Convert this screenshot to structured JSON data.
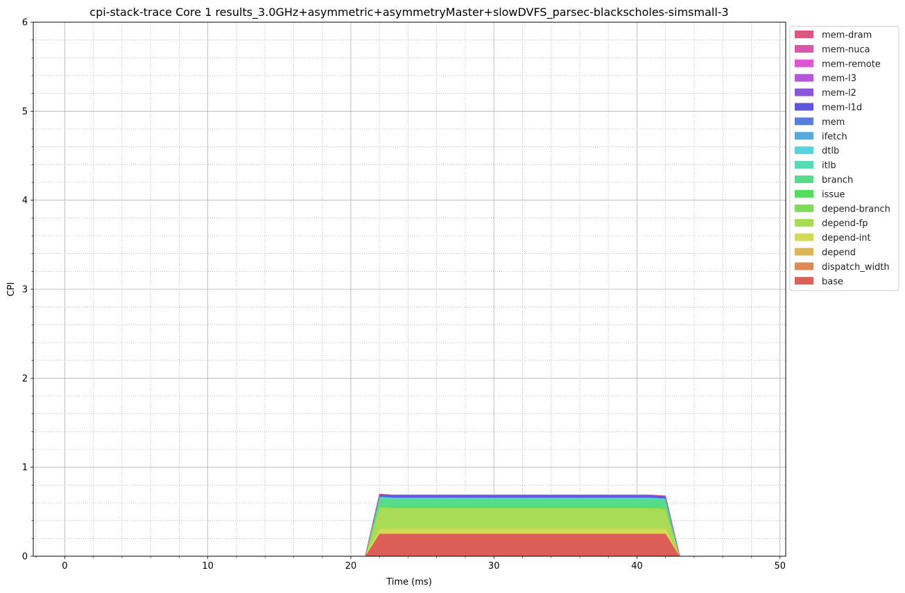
{
  "chart_data": {
    "type": "area",
    "stacked": true,
    "title": "cpi-stack-trace Core 1 results_3.0GHz+asymmetric+asymmetryMaster+slowDVFS_parsec-blackscholes-simsmall-3",
    "xlabel": "Time (ms)",
    "ylabel": "CPI",
    "xlim": [
      -2.2,
      50.4
    ],
    "ylim": [
      0,
      6
    ],
    "x_ticks": [
      0,
      10,
      20,
      30,
      40,
      50
    ],
    "y_ticks": [
      0,
      1,
      2,
      3,
      4,
      5,
      6
    ],
    "grid": "major solid, minor dotted",
    "legend_placement": "outside upper right",
    "legend_order": [
      "mem-dram",
      "mem-nuca",
      "mem-remote",
      "mem-l3",
      "mem-l2",
      "mem-l1d",
      "mem",
      "ifetch",
      "dtlb",
      "itlb",
      "branch",
      "issue",
      "depend-branch",
      "depend-fp",
      "depend-int",
      "depend",
      "dispatch_width",
      "base"
    ],
    "x": [
      21,
      22,
      23,
      24,
      25,
      26,
      27,
      28,
      29,
      30,
      31,
      32,
      33,
      34,
      35,
      36,
      37,
      38,
      39,
      40,
      41,
      42,
      43
    ],
    "series": [
      {
        "name": "base",
        "color": "#db5f57",
        "values": [
          0,
          0.25,
          0.25,
          0.25,
          0.25,
          0.25,
          0.25,
          0.25,
          0.25,
          0.25,
          0.25,
          0.25,
          0.25,
          0.25,
          0.25,
          0.25,
          0.25,
          0.25,
          0.25,
          0.25,
          0.25,
          0.25,
          0
        ]
      },
      {
        "name": "dispatch_width",
        "color": "#db8a57",
        "values": [
          0,
          0.005,
          0.005,
          0.005,
          0.005,
          0.005,
          0.005,
          0.005,
          0.005,
          0.005,
          0.005,
          0.005,
          0.005,
          0.005,
          0.005,
          0.005,
          0.005,
          0.005,
          0.005,
          0.005,
          0.005,
          0.005,
          0
        ]
      },
      {
        "name": "depend",
        "color": "#dbb557",
        "values": [
          0,
          0.005,
          0.005,
          0.005,
          0.005,
          0.005,
          0.005,
          0.005,
          0.005,
          0.005,
          0.005,
          0.005,
          0.005,
          0.005,
          0.005,
          0.005,
          0.005,
          0.005,
          0.005,
          0.005,
          0.005,
          0.005,
          0
        ]
      },
      {
        "name": "depend-int",
        "color": "#d4db57",
        "values": [
          0,
          0.05,
          0.05,
          0.05,
          0.05,
          0.05,
          0.05,
          0.05,
          0.05,
          0.05,
          0.05,
          0.05,
          0.05,
          0.05,
          0.05,
          0.05,
          0.05,
          0.05,
          0.05,
          0.05,
          0.05,
          0.05,
          0
        ]
      },
      {
        "name": "depend-fp",
        "color": "#a9db57",
        "values": [
          0,
          0.24,
          0.23,
          0.23,
          0.23,
          0.23,
          0.23,
          0.23,
          0.23,
          0.23,
          0.23,
          0.23,
          0.23,
          0.23,
          0.23,
          0.23,
          0.23,
          0.23,
          0.23,
          0.23,
          0.23,
          0.22,
          0
        ]
      },
      {
        "name": "depend-branch",
        "color": "#7edb57",
        "values": [
          0,
          0.01,
          0.01,
          0.01,
          0.01,
          0.01,
          0.01,
          0.01,
          0.01,
          0.01,
          0.01,
          0.01,
          0.01,
          0.01,
          0.01,
          0.01,
          0.01,
          0.01,
          0.01,
          0.01,
          0.01,
          0.01,
          0
        ]
      },
      {
        "name": "issue",
        "color": "#57db5f",
        "values": [
          0,
          0.01,
          0.01,
          0.01,
          0.01,
          0.01,
          0.01,
          0.01,
          0.01,
          0.01,
          0.01,
          0.01,
          0.01,
          0.01,
          0.01,
          0.01,
          0.01,
          0.01,
          0.01,
          0.01,
          0.01,
          0.01,
          0
        ]
      },
      {
        "name": "branch",
        "color": "#57db8a",
        "values": [
          0,
          0.08,
          0.08,
          0.08,
          0.08,
          0.08,
          0.08,
          0.08,
          0.08,
          0.08,
          0.08,
          0.08,
          0.08,
          0.08,
          0.08,
          0.08,
          0.08,
          0.08,
          0.08,
          0.08,
          0.08,
          0.08,
          0
        ]
      },
      {
        "name": "itlb",
        "color": "#57dbb5",
        "values": [
          0,
          0.01,
          0.01,
          0.01,
          0.01,
          0.01,
          0.01,
          0.01,
          0.01,
          0.01,
          0.01,
          0.01,
          0.01,
          0.01,
          0.01,
          0.01,
          0.01,
          0.01,
          0.01,
          0.01,
          0.01,
          0.01,
          0
        ]
      },
      {
        "name": "dtlb",
        "color": "#57d4db",
        "values": [
          0,
          0.005,
          0.005,
          0.005,
          0.005,
          0.005,
          0.005,
          0.005,
          0.005,
          0.005,
          0.005,
          0.005,
          0.005,
          0.005,
          0.005,
          0.005,
          0.005,
          0.005,
          0.005,
          0.005,
          0.005,
          0.005,
          0
        ]
      },
      {
        "name": "ifetch",
        "color": "#57a9db",
        "values": [
          0,
          0.005,
          0.005,
          0.005,
          0.005,
          0.005,
          0.005,
          0.005,
          0.005,
          0.005,
          0.005,
          0.005,
          0.005,
          0.005,
          0.005,
          0.005,
          0.005,
          0.005,
          0.005,
          0.005,
          0.005,
          0.005,
          0
        ]
      },
      {
        "name": "mem",
        "color": "#577edb",
        "values": [
          0,
          0.005,
          0.005,
          0.005,
          0.005,
          0.005,
          0.005,
          0.005,
          0.005,
          0.005,
          0.005,
          0.005,
          0.005,
          0.005,
          0.005,
          0.005,
          0.005,
          0.005,
          0.005,
          0.005,
          0.005,
          0.005,
          0
        ]
      },
      {
        "name": "mem-l1d",
        "color": "#5f57db",
        "values": [
          0,
          0.02,
          0.02,
          0.02,
          0.02,
          0.02,
          0.02,
          0.02,
          0.02,
          0.02,
          0.02,
          0.02,
          0.02,
          0.02,
          0.02,
          0.02,
          0.02,
          0.02,
          0.02,
          0.02,
          0.02,
          0.02,
          0
        ]
      },
      {
        "name": "mem-l2",
        "color": "#8a57db",
        "values": [
          0,
          0.003,
          0.003,
          0.003,
          0.003,
          0.003,
          0.003,
          0.003,
          0.003,
          0.003,
          0.003,
          0.003,
          0.003,
          0.003,
          0.003,
          0.003,
          0.003,
          0.003,
          0.003,
          0.003,
          0.003,
          0.003,
          0
        ]
      },
      {
        "name": "mem-l3",
        "color": "#b557db",
        "values": [
          0,
          0,
          0,
          0,
          0,
          0,
          0,
          0,
          0,
          0,
          0,
          0,
          0,
          0,
          0,
          0,
          0,
          0,
          0,
          0,
          0,
          0,
          0
        ]
      },
      {
        "name": "mem-remote",
        "color": "#db57d4",
        "values": [
          0,
          0,
          0,
          0,
          0,
          0,
          0,
          0,
          0,
          0,
          0,
          0,
          0,
          0,
          0,
          0,
          0,
          0,
          0,
          0,
          0,
          0,
          0
        ]
      },
      {
        "name": "mem-nuca",
        "color": "#db57a9",
        "values": [
          0,
          0,
          0,
          0,
          0,
          0,
          0,
          0,
          0,
          0,
          0,
          0,
          0,
          0,
          0,
          0,
          0,
          0,
          0,
          0,
          0,
          0,
          0
        ]
      },
      {
        "name": "mem-dram",
        "color": "#db577e",
        "values": [
          0,
          0.002,
          0.002,
          0.002,
          0.002,
          0.002,
          0.002,
          0.002,
          0.002,
          0.002,
          0.002,
          0.002,
          0.002,
          0.002,
          0.002,
          0.002,
          0.002,
          0.002,
          0.002,
          0.002,
          0.002,
          0.002,
          0
        ]
      }
    ]
  }
}
